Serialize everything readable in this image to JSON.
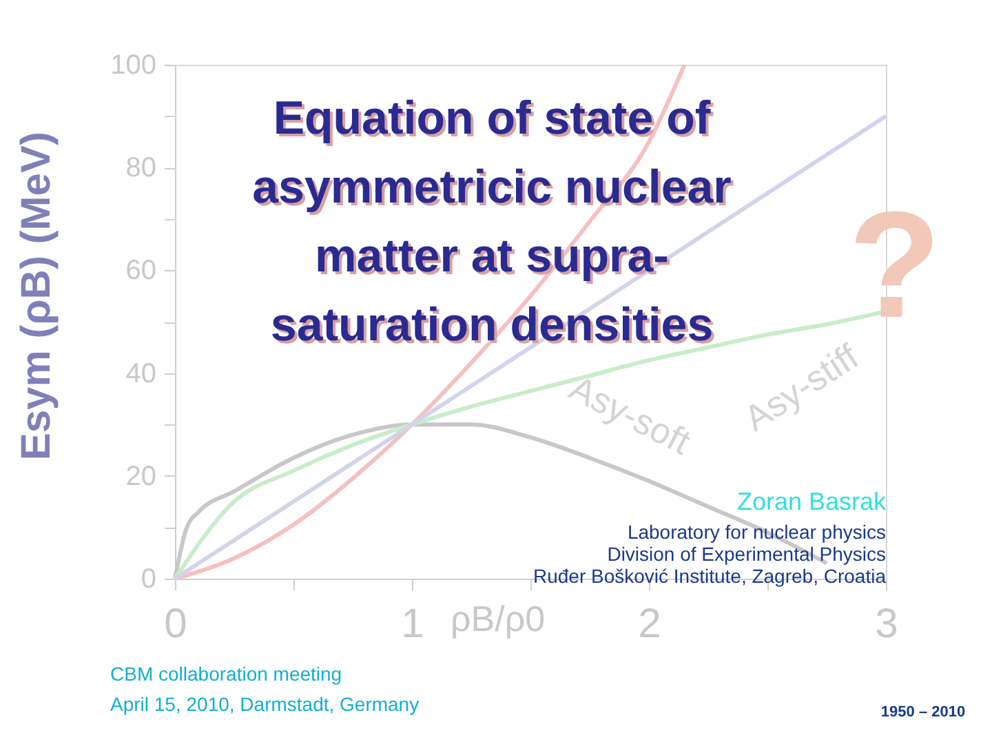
{
  "chart_data": {
    "type": "line",
    "title": "Equation of state of asymmetricic nuclear matter at supra-saturation densities",
    "xlabel": "ρB/ρ0",
    "ylabel": "Esym (ρB) (MeV)",
    "xlim": [
      0,
      3
    ],
    "ylim": [
      0,
      100
    ],
    "xticks": [
      0,
      {
        "value": 0.5,
        "label": null
      },
      1,
      {
        "value": 1.5,
        "label": null
      },
      2,
      {
        "value": 2.5,
        "label": null
      },
      3
    ],
    "yticks": [
      0,
      {
        "value": 10,
        "label": null
      },
      20,
      {
        "value": 30,
        "label": null
      },
      40,
      {
        "value": 50,
        "label": null
      },
      60,
      {
        "value": 70,
        "label": null
      },
      80,
      {
        "value": 90,
        "label": null
      },
      100
    ],
    "grid": false,
    "marker": "none",
    "line_style": "solid",
    "series": [
      {
        "color": "#c8c8c8",
        "x": [
          0,
          0.05,
          0.1,
          0.25,
          0.5,
          0.75,
          1,
          1.25,
          1.5,
          1.75,
          2,
          2.25,
          2.5,
          2.75
        ],
        "values": [
          0,
          10,
          13,
          17,
          23.5,
          28,
          30,
          30,
          27.5,
          23.5,
          19,
          14,
          9,
          3
        ]
      },
      {
        "color": "#c9ecc9",
        "x": [
          0,
          0.25,
          0.5,
          0.75,
          1,
          1.25,
          1.5,
          1.75,
          2,
          2.25,
          2.5,
          2.75,
          3
        ],
        "values": [
          0,
          15,
          21,
          26,
          30,
          33.5,
          36.5,
          39.5,
          42.5,
          45,
          47.5,
          49.5,
          52
        ]
      },
      {
        "color": "#f6c0c0",
        "x": [
          0,
          0.25,
          0.5,
          0.75,
          1,
          1.25,
          1.5,
          1.75,
          2,
          2.15
        ],
        "values": [
          0,
          4,
          10.5,
          19.5,
          30,
          42,
          55,
          69.5,
          85,
          100
        ]
      },
      {
        "color": "#d2d4ec",
        "x": [
          0,
          3
        ],
        "values": [
          0,
          90
        ]
      }
    ],
    "annotations": [
      "Asy-stiff",
      "Asy-soft",
      "?",
      "Zoran Basrak",
      "Laboratory for nuclear physics",
      "Division of Experimental Physics",
      "Ruđer Bošković Institute, Zagreb, Croatia",
      "CBM collaboration meeting",
      "April 15, 2010, Darmstadt, Germany",
      "1950 – 2010"
    ]
  }
}
